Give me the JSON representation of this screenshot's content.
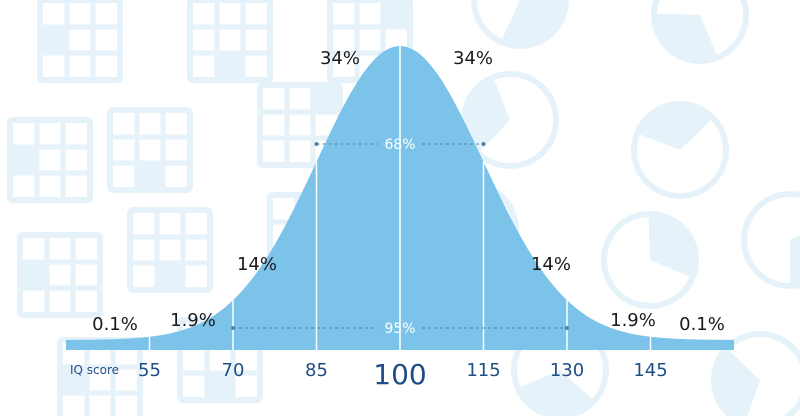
{
  "chart_data": {
    "type": "area",
    "distribution": "normal",
    "mean": 100,
    "sd": 15,
    "xlabel": "IQ score",
    "ticks": [
      55,
      70,
      85,
      100,
      115,
      130,
      145
    ],
    "tick_labels": [
      "55",
      "70",
      "85",
      "100",
      "115",
      "130",
      "145"
    ],
    "segments": [
      {
        "from": 40,
        "to": 55,
        "label": "0.1%"
      },
      {
        "from": 55,
        "to": 70,
        "label": "1.9%"
      },
      {
        "from": 70,
        "to": 85,
        "label": "14%"
      },
      {
        "from": 85,
        "to": 100,
        "label": "34%"
      },
      {
        "from": 100,
        "to": 115,
        "label": "34%"
      },
      {
        "from": 115,
        "to": 130,
        "label": "14%"
      },
      {
        "from": 130,
        "to": 145,
        "label": "1.9%"
      },
      {
        "from": 145,
        "to": 160,
        "label": "0.1%"
      }
    ],
    "intervals": [
      {
        "from": 85,
        "to": 115,
        "label": "68%"
      },
      {
        "from": 70,
        "to": 130,
        "label": "95%"
      }
    ],
    "colors": {
      "fill": "#7cc3e9",
      "axis": "#7cc3e9",
      "tick_text": "#1f4e86",
      "label_text": "#1a1a1a",
      "background_pattern": "#e6f2fa"
    }
  }
}
